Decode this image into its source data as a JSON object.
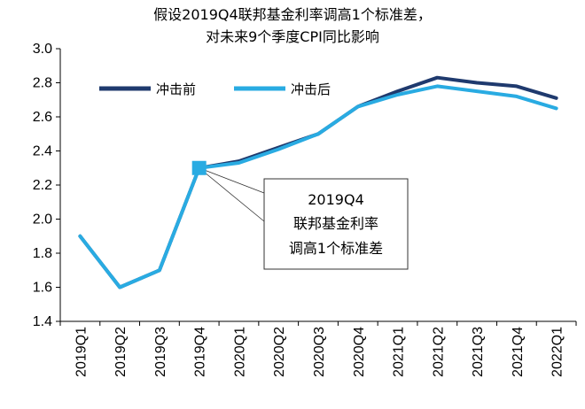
{
  "chart_data": {
    "type": "line",
    "title": [
      "假设2019Q4联邦基金利率调高1个标准差，",
      "对未来9个季度CPI同比影响"
    ],
    "categories": [
      "2019Q1",
      "2019Q2",
      "2019Q3",
      "2019Q4",
      "2020Q1",
      "2020Q2",
      "2020Q3",
      "2020Q4",
      "2021Q1",
      "2021Q2",
      "2021Q3",
      "2021Q4",
      "2022Q1"
    ],
    "series": [
      {
        "name": "冲击前",
        "color": "#1f3a6e",
        "values": [
          1.9,
          1.6,
          1.7,
          2.3,
          2.34,
          2.42,
          2.5,
          2.66,
          2.75,
          2.83,
          2.8,
          2.78,
          2.71
        ]
      },
      {
        "name": "冲击后",
        "color": "#29abe2",
        "values": [
          1.9,
          1.6,
          1.7,
          2.3,
          2.33,
          2.41,
          2.5,
          2.66,
          2.73,
          2.78,
          2.75,
          2.72,
          2.65
        ]
      }
    ],
    "ylim": [
      1.4,
      3.0
    ],
    "yticks": [
      "1.4",
      "1.6",
      "1.8",
      "2.0",
      "2.2",
      "2.4",
      "2.6",
      "2.8",
      "3.0"
    ],
    "legend_position": "top-left",
    "annotation": {
      "category": "2019Q4",
      "value": 2.3,
      "lines": [
        "2019Q4",
        "联邦基金利率",
        "调高1个标准差"
      ]
    }
  }
}
